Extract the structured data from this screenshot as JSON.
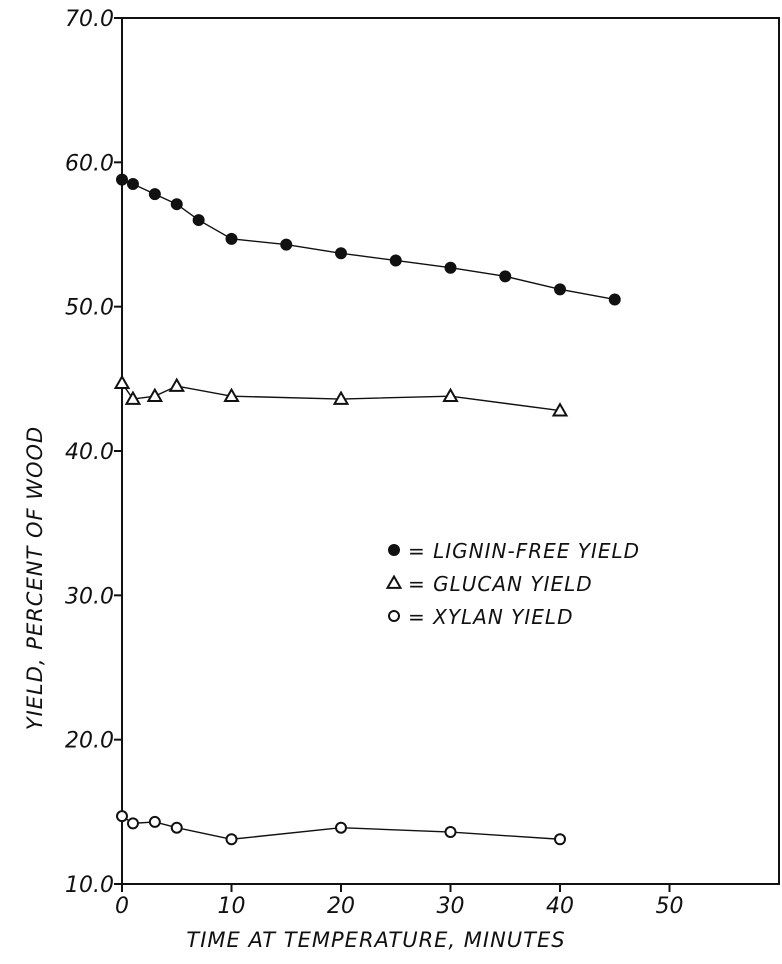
{
  "chart_data": {
    "type": "line",
    "title": "",
    "xlabel": "TIME AT TEMPERATURE, MINUTES",
    "ylabel": "YIELD,  PERCENT OF WOOD",
    "xlim": [
      0,
      60
    ],
    "ylim": [
      10,
      70
    ],
    "xticks": [
      0,
      10,
      20,
      30,
      40,
      50
    ],
    "xtick_labels": [
      "0",
      "10",
      "20",
      "30",
      "40",
      "50"
    ],
    "yticks": [
      10,
      20,
      30,
      40,
      50,
      60,
      70
    ],
    "ytick_labels": [
      "10.0",
      "20.0",
      "30.0",
      "40.0",
      "50.0",
      "60.0",
      "70.0"
    ],
    "grid": false,
    "legend_position": "center-right",
    "series": [
      {
        "name": "= LIGNIN-FREE YIELD",
        "marker": "filled-circle",
        "x": [
          0,
          1,
          3,
          5,
          7,
          10,
          15,
          20,
          25,
          30,
          35,
          40,
          45
        ],
        "y": [
          58.8,
          58.5,
          57.8,
          57.1,
          56.0,
          54.7,
          54.3,
          53.7,
          53.2,
          52.7,
          52.1,
          51.2,
          50.5
        ]
      },
      {
        "name": "= GLUCAN YIELD",
        "marker": "open-triangle",
        "x": [
          0,
          1,
          3,
          5,
          10,
          20,
          30,
          40
        ],
        "y": [
          44.7,
          43.6,
          43.8,
          44.5,
          43.8,
          43.6,
          43.8,
          42.8
        ]
      },
      {
        "name": "= XYLAN YIELD",
        "marker": "open-circle",
        "x": [
          0,
          1,
          3,
          5,
          10,
          20,
          30,
          40
        ],
        "y": [
          14.7,
          14.2,
          14.3,
          13.9,
          13.1,
          13.9,
          13.6,
          13.1
        ]
      }
    ]
  }
}
